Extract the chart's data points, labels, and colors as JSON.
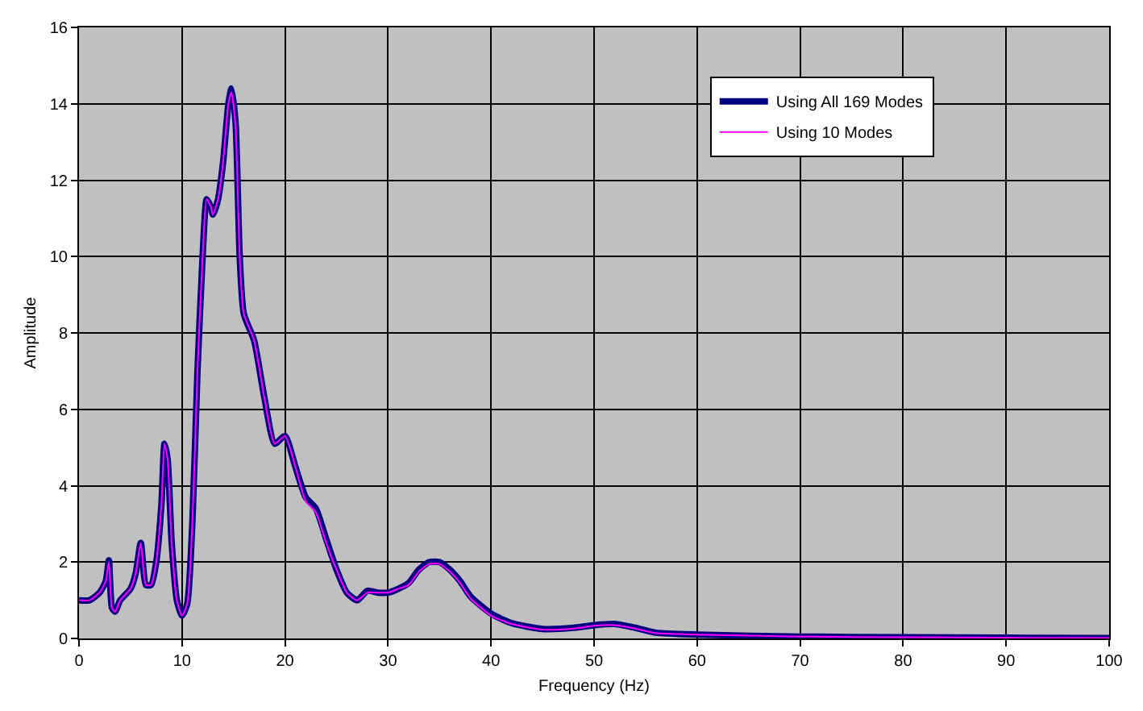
{
  "chart_data": {
    "type": "line",
    "xlabel": "Frequency (Hz)",
    "ylabel": "Amplitude",
    "xlim": [
      0,
      100
    ],
    "xticks": [
      0,
      10,
      20,
      30,
      40,
      50,
      60,
      70,
      80,
      90,
      100
    ],
    "ylim": [
      0,
      16
    ],
    "yticks": [
      0,
      2,
      4,
      6,
      8,
      10,
      12,
      14,
      16
    ],
    "grid": true,
    "legend": "top right",
    "marker": "none",
    "line_style": "solid",
    "x": [
      0,
      1,
      2,
      2.6,
      2.9,
      3.2,
      3.5,
      4,
      5,
      5.5,
      6,
      6.5,
      7,
      7.5,
      8,
      8.3,
      8.6,
      9,
      9.5,
      10,
      10.5,
      11,
      11.5,
      12,
      12.4,
      12.8,
      13,
      13.5,
      14,
      14.5,
      14.8,
      15.2,
      15.6,
      16,
      17,
      18,
      19,
      20,
      21,
      22,
      23,
      24,
      25,
      26,
      27,
      28,
      29,
      30,
      31,
      32,
      33,
      34,
      35,
      36,
      37,
      38,
      40,
      42,
      45,
      48,
      50,
      52,
      54,
      56,
      60,
      70,
      80,
      90,
      100
    ],
    "series": [
      {
        "name": "Using All 169 Modes",
        "color": "#000080",
        "values": [
          1.0,
          1.0,
          1.2,
          1.5,
          2.05,
          0.8,
          0.7,
          1.0,
          1.3,
          1.7,
          2.5,
          1.4,
          1.4,
          2.0,
          3.5,
          5.1,
          4.7,
          2.5,
          1.0,
          0.6,
          0.9,
          3.0,
          7.0,
          10.0,
          11.5,
          11.3,
          11.1,
          11.5,
          12.5,
          14.0,
          14.4,
          13.5,
          10.0,
          8.5,
          7.8,
          6.3,
          5.1,
          5.3,
          4.5,
          3.7,
          3.4,
          2.6,
          1.8,
          1.2,
          1.0,
          1.25,
          1.2,
          1.2,
          1.3,
          1.45,
          1.8,
          2.0,
          2.0,
          1.8,
          1.5,
          1.1,
          0.65,
          0.4,
          0.25,
          0.28,
          0.35,
          0.38,
          0.28,
          0.15,
          0.1,
          0.05,
          0.03,
          0.02,
          0.01
        ]
      },
      {
        "name": "Using 10 Modes",
        "color": "#ff00ff",
        "values": [
          1.0,
          1.0,
          1.2,
          1.5,
          2.0,
          0.8,
          0.7,
          1.0,
          1.3,
          1.7,
          2.5,
          1.4,
          1.4,
          2.0,
          3.5,
          5.1,
          4.7,
          2.5,
          1.0,
          0.6,
          0.9,
          3.0,
          7.0,
          10.0,
          11.5,
          11.3,
          11.1,
          11.5,
          12.5,
          14.0,
          14.3,
          13.4,
          10.0,
          8.5,
          7.8,
          6.3,
          5.1,
          5.3,
          4.5,
          3.6,
          3.3,
          2.5,
          1.8,
          1.2,
          1.0,
          1.2,
          1.2,
          1.2,
          1.3,
          1.4,
          1.75,
          1.95,
          1.95,
          1.75,
          1.45,
          1.05,
          0.6,
          0.38,
          0.23,
          0.26,
          0.33,
          0.35,
          0.26,
          0.14,
          0.1,
          0.05,
          0.03,
          0.02,
          0.01
        ]
      }
    ]
  }
}
